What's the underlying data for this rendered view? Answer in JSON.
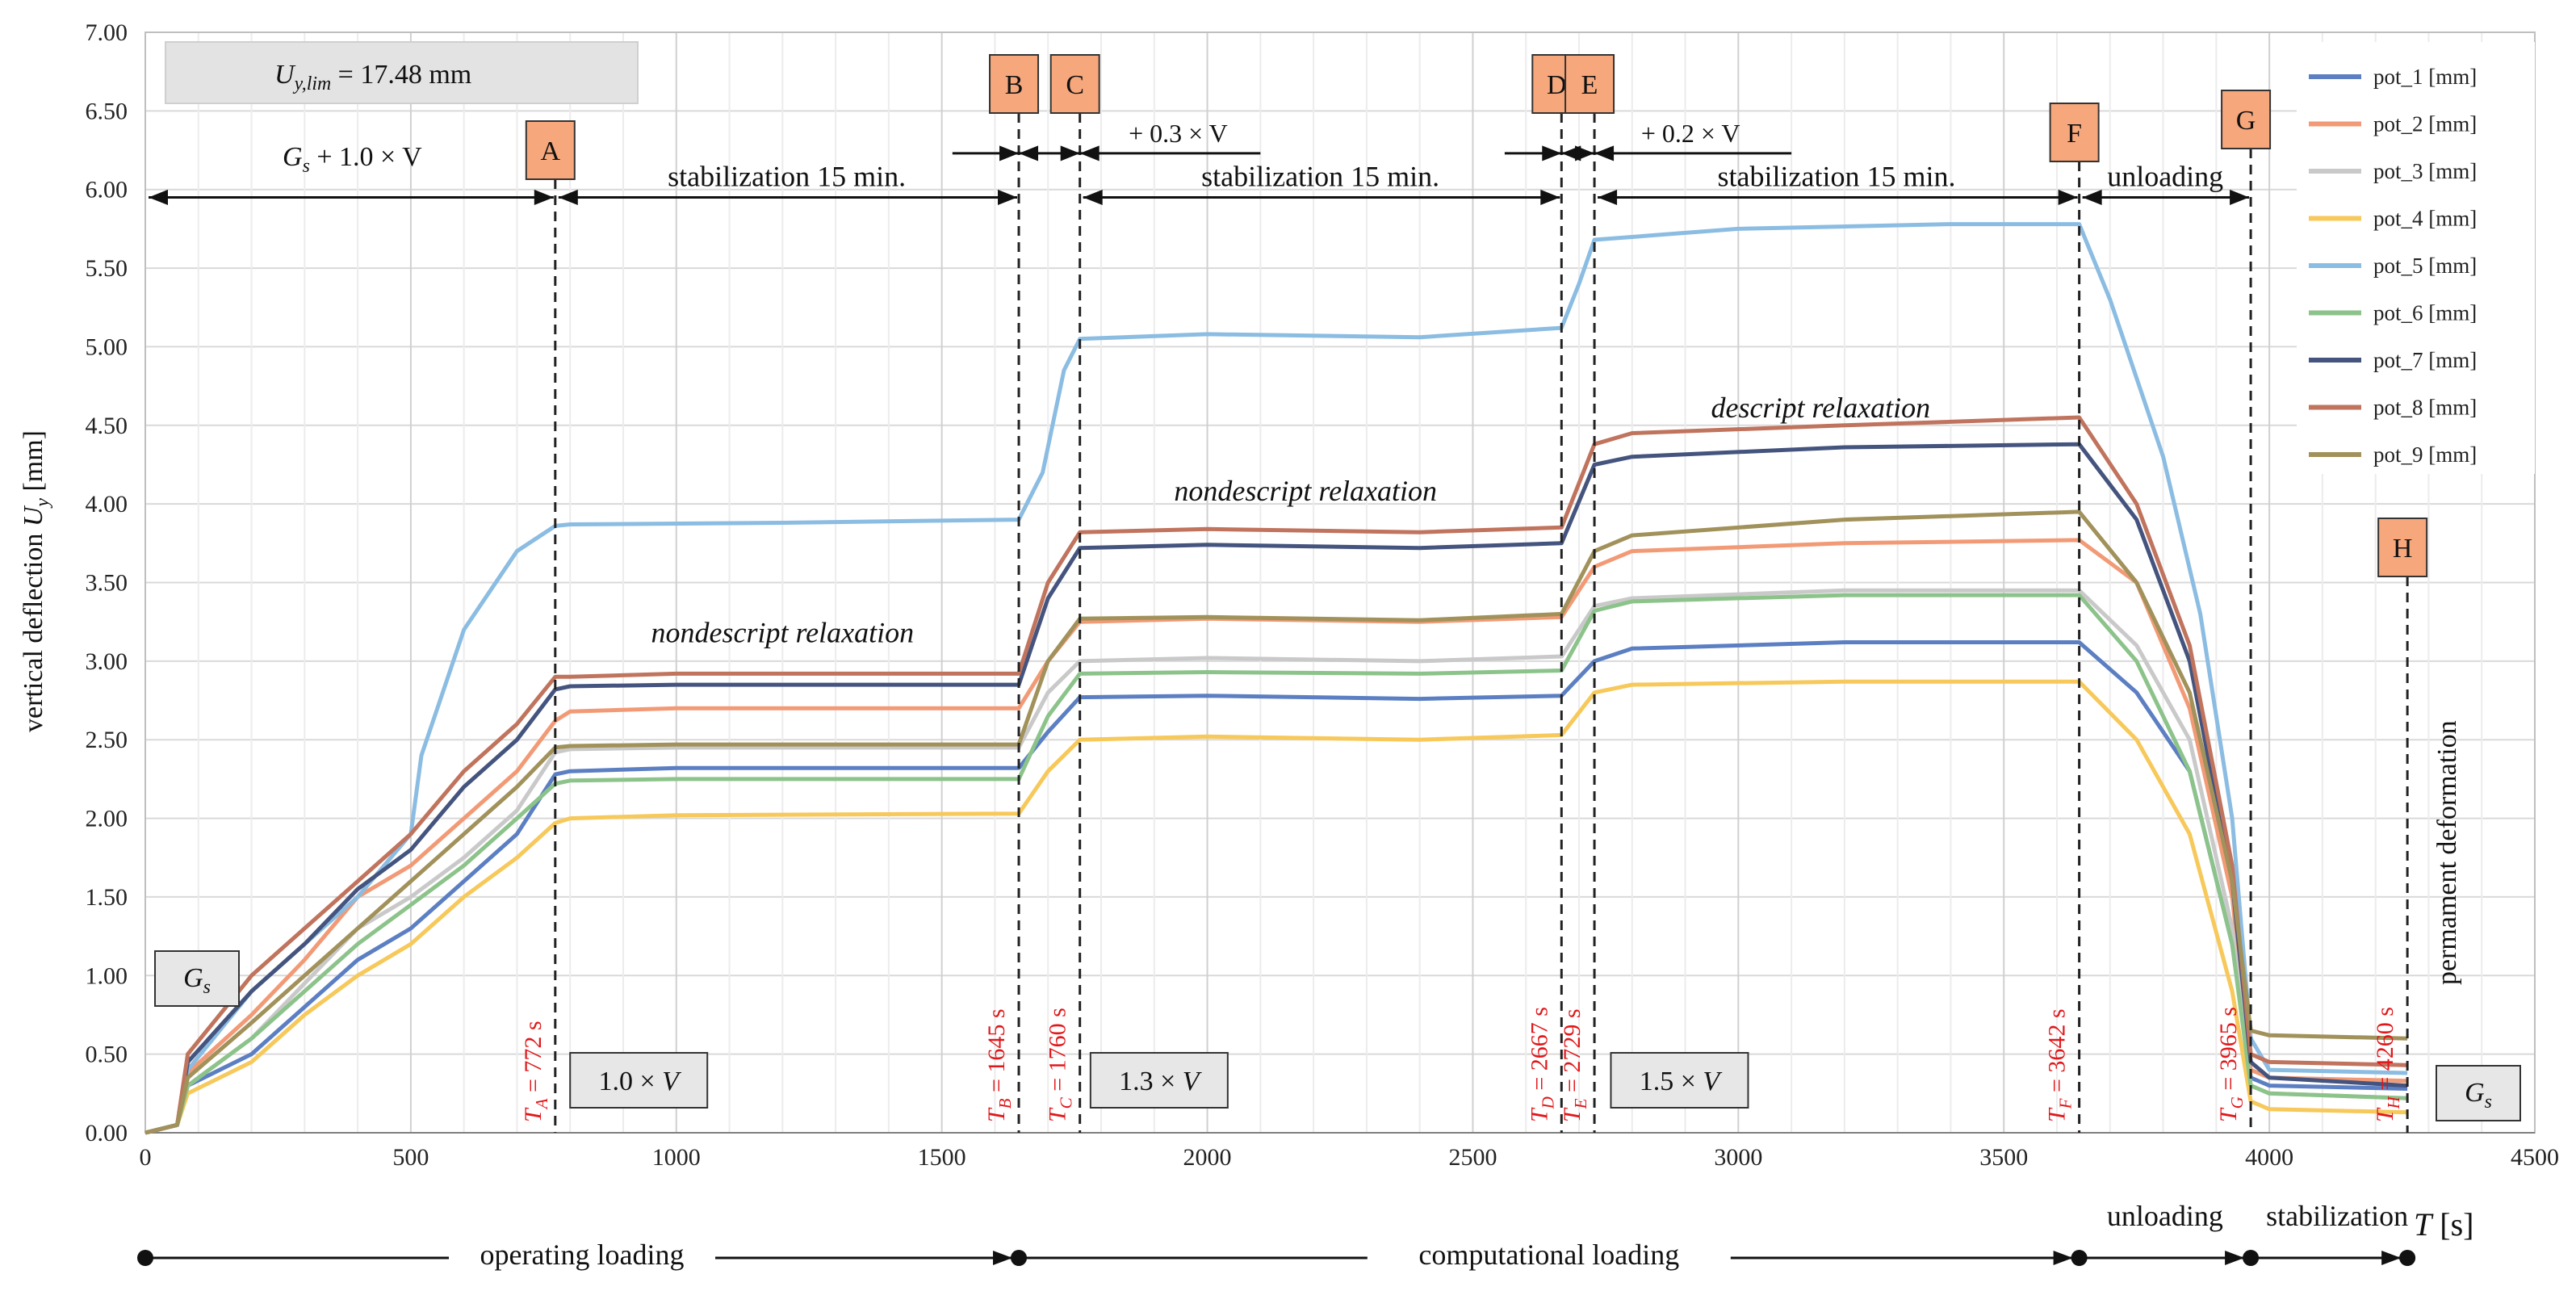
{
  "chart_data": {
    "type": "line",
    "ylabel_text": "vertical deflection",
    "ylabel_symbol": "U",
    "ylabel_sub": "y",
    "ylabel_unit": "[mm]",
    "xlabel_symbol": "T",
    "xlabel_unit": "[s]",
    "xlim": [
      0,
      4500
    ],
    "ylim": [
      0,
      7
    ],
    "xticks": [
      0,
      500,
      1000,
      1500,
      2000,
      2500,
      3000,
      3500,
      4000,
      4500
    ],
    "yticks": [
      "0.00",
      "0.50",
      "1.00",
      "1.50",
      "2.00",
      "2.50",
      "3.00",
      "3.50",
      "4.00",
      "4.50",
      "5.00",
      "5.50",
      "6.00",
      "6.50",
      "7.00"
    ],
    "grid": true,
    "limit_box": {
      "symbol": "U",
      "sub": "y,lim",
      "value": "= 17.48 mm"
    },
    "points": [
      {
        "label": "A",
        "t": 772,
        "time_text": "= 772 s",
        "T_sub": "A"
      },
      {
        "label": "B",
        "t": 1645,
        "time_text": "= 1645 s",
        "T_sub": "B"
      },
      {
        "label": "C",
        "t": 1760,
        "time_text": "= 1760 s",
        "T_sub": "C"
      },
      {
        "label": "D",
        "t": 2667,
        "time_text": "= 2667 s",
        "T_sub": "D"
      },
      {
        "label": "E",
        "t": 2729,
        "time_text": "= 2729 s",
        "T_sub": "E"
      },
      {
        "label": "F",
        "t": 3642,
        "time_text": "= 3642 s",
        "T_sub": "F"
      },
      {
        "label": "G",
        "t": 3965,
        "time_text": "= 3965 s",
        "T_sub": "G"
      },
      {
        "label": "H",
        "t": 4260,
        "time_text": "= 4260 s",
        "T_sub": "H"
      }
    ],
    "phase_labels": {
      "gs_plus": "G",
      "gs_plus_sub": "s",
      "gs_plus_rest": " + 1.0 × V",
      "stab1": "stabilization  15 min.",
      "stab2": "stabilization  15 min.",
      "stab3": "stabilization  15 min.",
      "plus03": "+ 0.3 × V",
      "plus02": "+ 0.2 × V",
      "unloading_top": "unloading"
    },
    "annotations": {
      "relax1": "nondescript relaxation",
      "relax2": "nondescript relaxation",
      "relax3": "descript relaxation",
      "perm": "permament deformation"
    },
    "load_boxes": [
      "1.0 × V",
      "1.3 × V",
      "1.5 ×  V"
    ],
    "gs_label": "G",
    "gs_sub": "s",
    "bottom_phases": {
      "operating": "operating loading",
      "computational": "computational  loading",
      "unloading": "unloading",
      "stabilization": "stabilization"
    },
    "series": [
      {
        "name": "pot_1 [mm]",
        "color": "#5b7fc2",
        "points": [
          [
            0,
            0
          ],
          [
            60,
            0.05
          ],
          [
            80,
            0.3
          ],
          [
            200,
            0.5
          ],
          [
            300,
            0.8
          ],
          [
            400,
            1.1
          ],
          [
            500,
            1.3
          ],
          [
            600,
            1.6
          ],
          [
            700,
            1.9
          ],
          [
            772,
            2.28
          ],
          [
            800,
            2.3
          ],
          [
            1000,
            2.32
          ],
          [
            1645,
            2.32
          ],
          [
            1700,
            2.55
          ],
          [
            1760,
            2.77
          ],
          [
            2000,
            2.78
          ],
          [
            2400,
            2.76
          ],
          [
            2667,
            2.78
          ],
          [
            2729,
            3.0
          ],
          [
            2800,
            3.08
          ],
          [
            3200,
            3.12
          ],
          [
            3642,
            3.12
          ],
          [
            3750,
            2.8
          ],
          [
            3850,
            2.3
          ],
          [
            3930,
            1.2
          ],
          [
            3965,
            0.35
          ],
          [
            4000,
            0.3
          ],
          [
            4260,
            0.28
          ]
        ]
      },
      {
        "name": "pot_2 [mm]",
        "color": "#f29a76",
        "points": [
          [
            0,
            0
          ],
          [
            60,
            0.05
          ],
          [
            80,
            0.38
          ],
          [
            200,
            0.75
          ],
          [
            300,
            1.1
          ],
          [
            400,
            1.5
          ],
          [
            500,
            1.7
          ],
          [
            600,
            2.0
          ],
          [
            700,
            2.3
          ],
          [
            772,
            2.62
          ],
          [
            800,
            2.68
          ],
          [
            1000,
            2.7
          ],
          [
            1645,
            2.7
          ],
          [
            1700,
            3.0
          ],
          [
            1760,
            3.25
          ],
          [
            2000,
            3.27
          ],
          [
            2400,
            3.25
          ],
          [
            2667,
            3.28
          ],
          [
            2729,
            3.6
          ],
          [
            2800,
            3.7
          ],
          [
            3200,
            3.75
          ],
          [
            3642,
            3.77
          ],
          [
            3750,
            3.5
          ],
          [
            3850,
            2.7
          ],
          [
            3930,
            1.5
          ],
          [
            3965,
            0.4
          ],
          [
            4000,
            0.35
          ],
          [
            4260,
            0.33
          ]
        ]
      },
      {
        "name": "pot_3 [mm]",
        "color": "#c9c9c9",
        "points": [
          [
            0,
            0
          ],
          [
            60,
            0.05
          ],
          [
            80,
            0.3
          ],
          [
            200,
            0.6
          ],
          [
            300,
            0.95
          ],
          [
            400,
            1.3
          ],
          [
            500,
            1.5
          ],
          [
            600,
            1.75
          ],
          [
            700,
            2.05
          ],
          [
            772,
            2.42
          ],
          [
            800,
            2.44
          ],
          [
            1000,
            2.45
          ],
          [
            1645,
            2.45
          ],
          [
            1700,
            2.8
          ],
          [
            1760,
            3.0
          ],
          [
            2000,
            3.02
          ],
          [
            2400,
            3.0
          ],
          [
            2667,
            3.03
          ],
          [
            2729,
            3.35
          ],
          [
            2800,
            3.4
          ],
          [
            3200,
            3.45
          ],
          [
            3642,
            3.45
          ],
          [
            3750,
            3.1
          ],
          [
            3850,
            2.5
          ],
          [
            3930,
            1.3
          ],
          [
            3965,
            0.3
          ],
          [
            4000,
            0.25
          ],
          [
            4260,
            0.22
          ]
        ]
      },
      {
        "name": "pot_4 [mm]",
        "color": "#f7c85a",
        "points": [
          [
            0,
            0
          ],
          [
            60,
            0.05
          ],
          [
            80,
            0.25
          ],
          [
            200,
            0.45
          ],
          [
            300,
            0.75
          ],
          [
            400,
            1.0
          ],
          [
            500,
            1.2
          ],
          [
            600,
            1.5
          ],
          [
            700,
            1.75
          ],
          [
            772,
            1.97
          ],
          [
            800,
            2.0
          ],
          [
            1000,
            2.02
          ],
          [
            1645,
            2.03
          ],
          [
            1700,
            2.3
          ],
          [
            1760,
            2.5
          ],
          [
            2000,
            2.52
          ],
          [
            2400,
            2.5
          ],
          [
            2667,
            2.53
          ],
          [
            2729,
            2.8
          ],
          [
            2800,
            2.85
          ],
          [
            3200,
            2.87
          ],
          [
            3642,
            2.87
          ],
          [
            3750,
            2.5
          ],
          [
            3850,
            1.9
          ],
          [
            3930,
            0.9
          ],
          [
            3965,
            0.2
          ],
          [
            4000,
            0.15
          ],
          [
            4260,
            0.13
          ]
        ]
      },
      {
        "name": "pot_5 [mm]",
        "color": "#8bbce2",
        "points": [
          [
            0,
            0
          ],
          [
            60,
            0.05
          ],
          [
            80,
            0.4
          ],
          [
            200,
            0.9
          ],
          [
            300,
            1.2
          ],
          [
            400,
            1.5
          ],
          [
            500,
            1.9
          ],
          [
            520,
            2.4
          ],
          [
            560,
            2.8
          ],
          [
            600,
            3.2
          ],
          [
            650,
            3.45
          ],
          [
            700,
            3.7
          ],
          [
            772,
            3.86
          ],
          [
            800,
            3.87
          ],
          [
            1200,
            3.88
          ],
          [
            1645,
            3.9
          ],
          [
            1690,
            4.2
          ],
          [
            1730,
            4.85
          ],
          [
            1760,
            5.05
          ],
          [
            2000,
            5.08
          ],
          [
            2400,
            5.06
          ],
          [
            2667,
            5.12
          ],
          [
            2700,
            5.4
          ],
          [
            2729,
            5.68
          ],
          [
            3000,
            5.75
          ],
          [
            3400,
            5.78
          ],
          [
            3642,
            5.78
          ],
          [
            3700,
            5.3
          ],
          [
            3800,
            4.3
          ],
          [
            3870,
            3.3
          ],
          [
            3930,
            2.0
          ],
          [
            3965,
            0.6
          ],
          [
            4000,
            0.4
          ],
          [
            4260,
            0.38
          ]
        ]
      },
      {
        "name": "pot_6 [mm]",
        "color": "#8cc38a",
        "points": [
          [
            0,
            0
          ],
          [
            60,
            0.05
          ],
          [
            80,
            0.3
          ],
          [
            200,
            0.6
          ],
          [
            300,
            0.9
          ],
          [
            400,
            1.2
          ],
          [
            500,
            1.45
          ],
          [
            600,
            1.7
          ],
          [
            700,
            2.0
          ],
          [
            772,
            2.22
          ],
          [
            800,
            2.24
          ],
          [
            1000,
            2.25
          ],
          [
            1645,
            2.25
          ],
          [
            1700,
            2.65
          ],
          [
            1760,
            2.92
          ],
          [
            2000,
            2.93
          ],
          [
            2400,
            2.92
          ],
          [
            2667,
            2.94
          ],
          [
            2729,
            3.32
          ],
          [
            2800,
            3.38
          ],
          [
            3200,
            3.42
          ],
          [
            3642,
            3.42
          ],
          [
            3750,
            3.0
          ],
          [
            3850,
            2.3
          ],
          [
            3930,
            1.2
          ],
          [
            3965,
            0.3
          ],
          [
            4000,
            0.25
          ],
          [
            4260,
            0.22
          ]
        ]
      },
      {
        "name": "pot_7 [mm]",
        "color": "#44547e",
        "points": [
          [
            0,
            0
          ],
          [
            60,
            0.05
          ],
          [
            80,
            0.45
          ],
          [
            200,
            0.9
          ],
          [
            300,
            1.2
          ],
          [
            400,
            1.55
          ],
          [
            500,
            1.8
          ],
          [
            600,
            2.2
          ],
          [
            700,
            2.5
          ],
          [
            772,
            2.82
          ],
          [
            800,
            2.84
          ],
          [
            1000,
            2.85
          ],
          [
            1645,
            2.85
          ],
          [
            1700,
            3.4
          ],
          [
            1760,
            3.72
          ],
          [
            2000,
            3.74
          ],
          [
            2400,
            3.72
          ],
          [
            2667,
            3.75
          ],
          [
            2729,
            4.25
          ],
          [
            2800,
            4.3
          ],
          [
            3200,
            4.36
          ],
          [
            3642,
            4.38
          ],
          [
            3750,
            3.9
          ],
          [
            3850,
            3.0
          ],
          [
            3930,
            1.6
          ],
          [
            3965,
            0.45
          ],
          [
            4000,
            0.35
          ],
          [
            4260,
            0.3
          ]
        ]
      },
      {
        "name": "pot_8 [mm]",
        "color": "#c0735d",
        "points": [
          [
            0,
            0
          ],
          [
            60,
            0.05
          ],
          [
            80,
            0.5
          ],
          [
            200,
            1.0
          ],
          [
            300,
            1.3
          ],
          [
            400,
            1.6
          ],
          [
            500,
            1.9
          ],
          [
            600,
            2.3
          ],
          [
            700,
            2.6
          ],
          [
            772,
            2.9
          ],
          [
            800,
            2.9
          ],
          [
            1000,
            2.92
          ],
          [
            1645,
            2.92
          ],
          [
            1700,
            3.5
          ],
          [
            1760,
            3.82
          ],
          [
            2000,
            3.84
          ],
          [
            2400,
            3.82
          ],
          [
            2667,
            3.85
          ],
          [
            2729,
            4.38
          ],
          [
            2800,
            4.45
          ],
          [
            3200,
            4.5
          ],
          [
            3642,
            4.55
          ],
          [
            3750,
            4.0
          ],
          [
            3850,
            3.1
          ],
          [
            3930,
            1.7
          ],
          [
            3965,
            0.5
          ],
          [
            4000,
            0.45
          ],
          [
            4260,
            0.43
          ]
        ]
      },
      {
        "name": "pot_9 [mm]",
        "color": "#a1915a",
        "points": [
          [
            0,
            0
          ],
          [
            60,
            0.05
          ],
          [
            80,
            0.35
          ],
          [
            200,
            0.7
          ],
          [
            300,
            1.0
          ],
          [
            400,
            1.3
          ],
          [
            500,
            1.6
          ],
          [
            600,
            1.9
          ],
          [
            700,
            2.2
          ],
          [
            772,
            2.45
          ],
          [
            800,
            2.46
          ],
          [
            1000,
            2.47
          ],
          [
            1645,
            2.47
          ],
          [
            1700,
            3.0
          ],
          [
            1760,
            3.27
          ],
          [
            2000,
            3.28
          ],
          [
            2400,
            3.26
          ],
          [
            2667,
            3.3
          ],
          [
            2729,
            3.7
          ],
          [
            2800,
            3.8
          ],
          [
            3200,
            3.9
          ],
          [
            3642,
            3.95
          ],
          [
            3750,
            3.5
          ],
          [
            3850,
            2.8
          ],
          [
            3930,
            1.6
          ],
          [
            3965,
            0.65
          ],
          [
            4000,
            0.62
          ],
          [
            4260,
            0.6
          ]
        ]
      }
    ]
  }
}
